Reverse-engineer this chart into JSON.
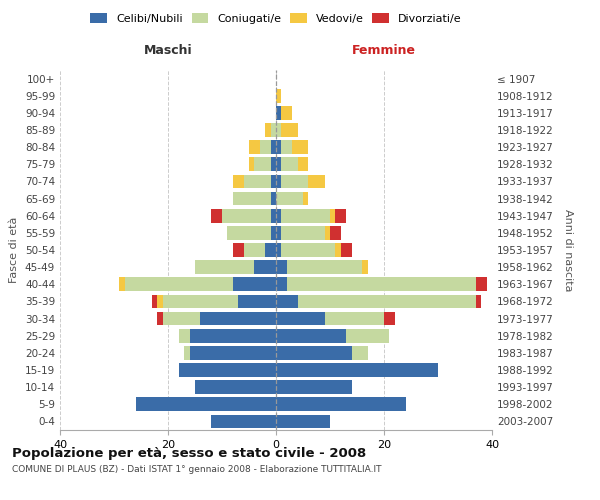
{
  "age_groups": [
    "0-4",
    "5-9",
    "10-14",
    "15-19",
    "20-24",
    "25-29",
    "30-34",
    "35-39",
    "40-44",
    "45-49",
    "50-54",
    "55-59",
    "60-64",
    "65-69",
    "70-74",
    "75-79",
    "80-84",
    "85-89",
    "90-94",
    "95-99",
    "100+"
  ],
  "birth_years": [
    "2003-2007",
    "1998-2002",
    "1993-1997",
    "1988-1992",
    "1983-1987",
    "1978-1982",
    "1973-1977",
    "1968-1972",
    "1963-1967",
    "1958-1962",
    "1953-1957",
    "1948-1952",
    "1943-1947",
    "1938-1942",
    "1933-1937",
    "1928-1932",
    "1923-1927",
    "1918-1922",
    "1913-1917",
    "1908-1912",
    "≤ 1907"
  ],
  "colors": {
    "celibe": "#3a6ca8",
    "coniugato": "#c5d9a0",
    "vedovo": "#f5c842",
    "divorziato": "#d03030"
  },
  "males": {
    "celibe": [
      12,
      26,
      15,
      18,
      16,
      16,
      14,
      7,
      8,
      4,
      2,
      1,
      1,
      1,
      1,
      1,
      1,
      0,
      0,
      0,
      0
    ],
    "coniugato": [
      0,
      0,
      0,
      0,
      1,
      2,
      7,
      14,
      20,
      11,
      4,
      8,
      9,
      7,
      5,
      3,
      2,
      1,
      0,
      0,
      0
    ],
    "vedovo": [
      0,
      0,
      0,
      0,
      0,
      0,
      0,
      1,
      1,
      0,
      0,
      0,
      0,
      0,
      2,
      1,
      2,
      1,
      0,
      0,
      0
    ],
    "divorziato": [
      0,
      0,
      0,
      0,
      0,
      0,
      1,
      1,
      0,
      0,
      2,
      0,
      2,
      0,
      0,
      0,
      0,
      0,
      0,
      0,
      0
    ]
  },
  "females": {
    "nubile": [
      10,
      24,
      14,
      30,
      14,
      13,
      9,
      4,
      2,
      2,
      1,
      1,
      1,
      0,
      1,
      1,
      1,
      0,
      1,
      0,
      0
    ],
    "coniugata": [
      0,
      0,
      0,
      0,
      3,
      8,
      11,
      33,
      35,
      14,
      10,
      8,
      9,
      5,
      5,
      3,
      2,
      1,
      0,
      0,
      0
    ],
    "vedova": [
      0,
      0,
      0,
      0,
      0,
      0,
      0,
      0,
      0,
      1,
      1,
      1,
      1,
      1,
      3,
      2,
      3,
      3,
      2,
      1,
      0
    ],
    "divorziata": [
      0,
      0,
      0,
      0,
      0,
      0,
      2,
      1,
      2,
      0,
      2,
      2,
      2,
      0,
      0,
      0,
      0,
      0,
      0,
      0,
      0
    ]
  },
  "xlim": 40,
  "title": "Popolazione per età, sesso e stato civile - 2008",
  "subtitle": "COMUNE DI PLAUS (BZ) - Dati ISTAT 1° gennaio 2008 - Elaborazione TUTTITALIA.IT",
  "ylabel_left": "Fasce di età",
  "ylabel_right": "Anni di nascita",
  "xlabel_left": "Maschi",
  "xlabel_right": "Femmine"
}
